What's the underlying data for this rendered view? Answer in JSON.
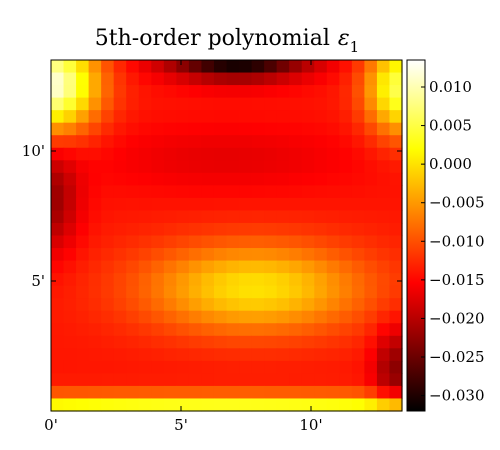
{
  "chart_data": {
    "type": "heatmap",
    "title": "5th-order polynomial",
    "title_symbol": "ε",
    "title_subscript": "1",
    "xlabel": "",
    "ylabel": "",
    "xlim": [
      0,
      13.5
    ],
    "ylim": [
      0,
      13.5
    ],
    "x_ticks": [
      {
        "value": 0,
        "label": "0'"
      },
      {
        "value": 5,
        "label": "5'"
      },
      {
        "value": 10,
        "label": "10'"
      }
    ],
    "y_ticks": [
      {
        "value": 5,
        "label": "5'"
      },
      {
        "value": 10,
        "label": "10'"
      }
    ],
    "colorbar": {
      "colormap": "hot",
      "vmin": -0.032,
      "vmax": 0.0135,
      "ticks": [
        {
          "value": 0.01,
          "label": "0.010"
        },
        {
          "value": 0.005,
          "label": "0.005"
        },
        {
          "value": 0.0,
          "label": "0.000"
        },
        {
          "value": -0.005,
          "label": "−0.005"
        },
        {
          "value": -0.01,
          "label": "−0.010"
        },
        {
          "value": -0.015,
          "label": "−0.015"
        },
        {
          "value": -0.02,
          "label": "−0.020"
        },
        {
          "value": -0.025,
          "label": "−0.025"
        },
        {
          "value": -0.03,
          "label": "−0.030"
        }
      ]
    },
    "grid_resolution": [
      28,
      28
    ],
    "field_features": [
      {
        "where": "top-left corner",
        "value": 0.011
      },
      {
        "where": "top-right corner",
        "value": 0.006
      },
      {
        "where": "top-center edge",
        "value": -0.032
      },
      {
        "where": "bottom edge",
        "value": 0.005
      },
      {
        "where": "center-right blob",
        "value": 0.001
      },
      {
        "where": "left side middle",
        "value": -0.02
      },
      {
        "where": "bottom-right",
        "value": -0.02
      },
      {
        "where": "background",
        "value": -0.013
      }
    ]
  }
}
